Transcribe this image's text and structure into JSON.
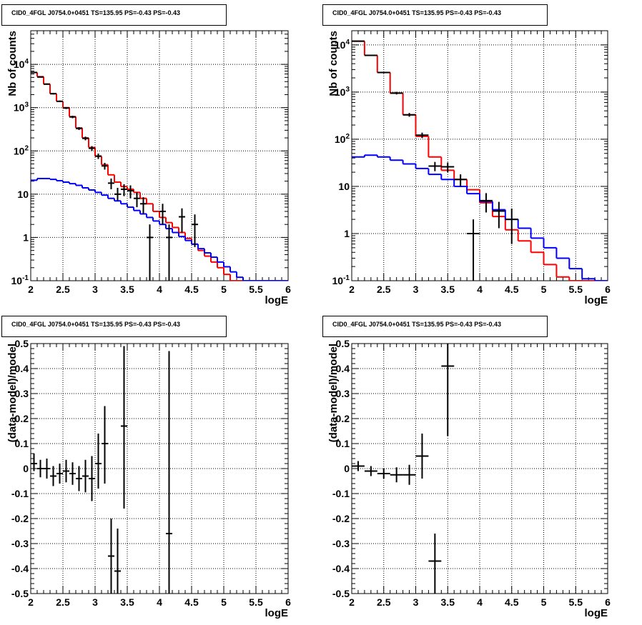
{
  "chart_data": [
    {
      "type": "line",
      "title": "CID0_4FGL J0754.0+0451 TS=135.95 PS=-0.43 PS=-0.43",
      "xlabel": "logE",
      "ylabel": "Nb of counts",
      "xlim": [
        2,
        6
      ],
      "ylim": [
        0.1,
        60000
      ],
      "yscale": "log",
      "grid": true,
      "x_ticks": [
        "2",
        "2.5",
        "3",
        "3.5",
        "4",
        "4.5",
        "5",
        "5.5",
        "6"
      ],
      "y_ticks": [
        "10^{-1}",
        "1",
        "10",
        "10^{2}",
        "10^{3}",
        "10^{4}"
      ],
      "series": [
        {
          "color": "#ff0000",
          "style": "step",
          "bin_edges": [
            2.0,
            2.1,
            2.2,
            2.3,
            2.4,
            2.5,
            2.6,
            2.7,
            2.8,
            2.9,
            3.0,
            3.1,
            3.2,
            3.3,
            3.4,
            3.5,
            3.6,
            3.7,
            3.8,
            3.9,
            4.0,
            4.1,
            4.2,
            4.3,
            4.4,
            4.5,
            4.6,
            4.7,
            4.8,
            4.9,
            5.0,
            5.1,
            5.2,
            5.3,
            5.4,
            5.5,
            5.6,
            5.7,
            5.8,
            5.9,
            6.0
          ],
          "values": [
            6500,
            5200,
            3500,
            2100,
            1400,
            1000,
            620,
            340,
            200,
            120,
            75,
            48,
            28,
            19,
            15,
            13,
            11,
            8,
            6,
            4,
            2.9,
            2.2,
            1.7,
            1.3,
            0.95,
            0.7,
            0.5,
            0.37,
            0.27,
            0.2,
            0.14,
            0.1,
            0.1,
            0.1,
            0.1,
            0.1,
            0.1,
            0.1,
            0.1,
            0.1
          ]
        },
        {
          "color": "#0000ff",
          "style": "step",
          "bin_edges": [
            2.0,
            2.1,
            2.2,
            2.3,
            2.4,
            2.5,
            2.6,
            2.7,
            2.8,
            2.9,
            3.0,
            3.1,
            3.2,
            3.3,
            3.4,
            3.5,
            3.6,
            3.7,
            3.8,
            3.9,
            4.0,
            4.1,
            4.2,
            4.3,
            4.4,
            4.5,
            4.6,
            4.7,
            4.8,
            4.9,
            5.0,
            5.1,
            5.2,
            5.3,
            5.4,
            5.5,
            5.6,
            5.7,
            5.8,
            5.9,
            6.0
          ],
          "values": [
            21,
            23,
            23,
            22,
            20.5,
            19,
            17.5,
            16,
            14,
            12.5,
            11,
            9.5,
            8,
            7,
            6,
            5,
            4.2,
            3.5,
            2.9,
            2.4,
            2.0,
            1.6,
            1.3,
            1.05,
            0.85,
            0.7,
            0.55,
            0.44,
            0.35,
            0.27,
            0.21,
            0.16,
            0.12,
            0.1,
            0.1,
            0.1,
            0.1,
            0.1,
            0.1,
            0.1
          ]
        },
        {
          "color": "#000000",
          "style": "errorbar",
          "points": [
            {
              "x": 2.05,
              "y": 6500,
              "ylo": 6300,
              "yhi": 6700
            },
            {
              "x": 2.15,
              "y": 5100,
              "ylo": 4950,
              "yhi": 5250
            },
            {
              "x": 2.25,
              "y": 3500,
              "ylo": 3400,
              "yhi": 3600
            },
            {
              "x": 2.35,
              "y": 2100,
              "ylo": 2020,
              "yhi": 2180
            },
            {
              "x": 2.45,
              "y": 1400,
              "ylo": 1340,
              "yhi": 1460
            },
            {
              "x": 2.55,
              "y": 980,
              "ylo": 930,
              "yhi": 1030
            },
            {
              "x": 2.65,
              "y": 610,
              "ylo": 570,
              "yhi": 650
            },
            {
              "x": 2.75,
              "y": 330,
              "ylo": 305,
              "yhi": 355
            },
            {
              "x": 2.85,
              "y": 195,
              "ylo": 176,
              "yhi": 214
            },
            {
              "x": 2.95,
              "y": 115,
              "ylo": 101,
              "yhi": 129
            },
            {
              "x": 3.05,
              "y": 76,
              "ylo": 65,
              "yhi": 87
            },
            {
              "x": 3.15,
              "y": 45,
              "ylo": 37,
              "yhi": 53
            },
            {
              "x": 3.25,
              "y": 18,
              "ylo": 13,
              "yhi": 23
            },
            {
              "x": 3.35,
              "y": 10,
              "ylo": 7,
              "yhi": 14
            },
            {
              "x": 3.45,
              "y": 13,
              "ylo": 9,
              "yhi": 17
            },
            {
              "x": 3.55,
              "y": 12,
              "ylo": 8,
              "yhi": 16
            },
            {
              "x": 3.65,
              "y": 8,
              "ylo": 5,
              "yhi": 11
            },
            {
              "x": 3.75,
              "y": 6,
              "ylo": 3.5,
              "yhi": 8.5
            },
            {
              "x": 3.85,
              "y": 1,
              "ylo": 0.1,
              "yhi": 2
            },
            {
              "x": 4.05,
              "y": 4,
              "ylo": 2,
              "yhi": 6
            },
            {
              "x": 4.15,
              "y": 1,
              "ylo": 0.1,
              "yhi": 2
            },
            {
              "x": 4.35,
              "y": 3,
              "ylo": 1.3,
              "yhi": 4.7
            },
            {
              "x": 4.55,
              "y": 2,
              "ylo": 0.6,
              "yhi": 3.4
            }
          ]
        }
      ]
    },
    {
      "type": "line",
      "title": "CID0_4FGL J0754.0+0451 TS=135.95 PS=-0.43 PS=-0.43",
      "xlabel": "logE",
      "ylabel": "Nb of counts",
      "xlim": [
        2,
        6
      ],
      "ylim": [
        0.1,
        20000
      ],
      "yscale": "log",
      "grid": true,
      "x_ticks": [
        "2",
        "2.5",
        "3",
        "3.5",
        "4",
        "4.5",
        "5",
        "5.5",
        "6"
      ],
      "y_ticks": [
        "10^{-1}",
        "1",
        "10",
        "10^{2}",
        "10^{3}",
        "10^{4}"
      ],
      "series": [
        {
          "color": "#ff0000",
          "style": "step",
          "bin_edges": [
            2.0,
            2.2,
            2.4,
            2.6,
            2.8,
            3.0,
            3.2,
            3.4,
            3.6,
            3.8,
            4.0,
            4.2,
            4.4,
            4.6,
            4.8,
            5.0,
            5.2,
            5.4,
            5.6,
            5.8,
            6.0
          ],
          "values": [
            12000,
            6000,
            2600,
            950,
            330,
            115,
            42,
            22,
            14,
            8.5,
            4.5,
            2.3,
            1.2,
            0.7,
            0.4,
            0.22,
            0.12,
            0.1,
            0.1,
            0.1
          ]
        },
        {
          "color": "#0000ff",
          "style": "step",
          "bin_edges": [
            2.0,
            2.2,
            2.4,
            2.6,
            2.8,
            3.0,
            3.2,
            3.4,
            3.6,
            3.8,
            4.0,
            4.2,
            4.4,
            4.6,
            4.8,
            5.0,
            5.2,
            5.4,
            5.6,
            5.8,
            6.0
          ],
          "values": [
            42,
            46,
            42,
            36,
            30,
            24,
            18,
            14,
            10,
            7,
            4.8,
            3.2,
            2.0,
            1.3,
            0.8,
            0.5,
            0.3,
            0.18,
            0.11,
            0.1
          ]
        },
        {
          "color": "#000000",
          "style": "errorbar",
          "points": [
            {
              "x": 2.1,
              "y": 12000,
              "ylo": 11800,
              "yhi": 12200
            },
            {
              "x": 2.3,
              "y": 6000,
              "ylo": 5850,
              "yhi": 6150
            },
            {
              "x": 2.5,
              "y": 2600,
              "ylo": 2500,
              "yhi": 2700
            },
            {
              "x": 2.7,
              "y": 950,
              "ylo": 890,
              "yhi": 1010
            },
            {
              "x": 2.9,
              "y": 330,
              "ylo": 300,
              "yhi": 360
            },
            {
              "x": 3.1,
              "y": 122,
              "ylo": 106,
              "yhi": 138
            },
            {
              "x": 3.3,
              "y": 27,
              "ylo": 21,
              "yhi": 33
            },
            {
              "x": 3.5,
              "y": 26,
              "ylo": 20,
              "yhi": 32
            },
            {
              "x": 3.7,
              "y": 14,
              "ylo": 10,
              "yhi": 18
            },
            {
              "x": 3.9,
              "y": 1,
              "ylo": 0.1,
              "yhi": 2
            },
            {
              "x": 4.1,
              "y": 5,
              "ylo": 2.8,
              "yhi": 7.2
            },
            {
              "x": 4.3,
              "y": 3,
              "ylo": 1.3,
              "yhi": 4.7
            },
            {
              "x": 4.5,
              "y": 2,
              "ylo": 0.6,
              "yhi": 3.4
            }
          ]
        }
      ]
    },
    {
      "type": "scatter",
      "title": "CID0_4FGL J0754.0+0451 TS=135.95 PS=-0.43 PS=-0.43",
      "xlabel": "logE",
      "ylabel": "(data-model)/model",
      "xlim": [
        2,
        6
      ],
      "ylim": [
        -0.5,
        0.5
      ],
      "grid": true,
      "x_ticks": [
        "2",
        "2.5",
        "3",
        "3.5",
        "4",
        "4.5",
        "5",
        "5.5",
        "6"
      ],
      "y_ticks": [
        "-0.5",
        "-0.4",
        "-0.3",
        "-0.2",
        "-0.1",
        "0",
        "0.1",
        "0.2",
        "0.3",
        "0.4",
        "0.5"
      ],
      "series": [
        {
          "color": "#000000",
          "style": "errorbar",
          "xerr": 0.05,
          "points": [
            {
              "x": 2.05,
              "y": 0.02,
              "ylo": -0.01,
              "yhi": 0.06
            },
            {
              "x": 2.15,
              "y": 0.0,
              "ylo": -0.035,
              "yhi": 0.035
            },
            {
              "x": 2.25,
              "y": 0.0,
              "ylo": -0.04,
              "yhi": 0.04
            },
            {
              "x": 2.35,
              "y": -0.03,
              "ylo": -0.07,
              "yhi": 0.01
            },
            {
              "x": 2.45,
              "y": -0.02,
              "ylo": -0.06,
              "yhi": 0.02
            },
            {
              "x": 2.55,
              "y": -0.01,
              "ylo": -0.055,
              "yhi": 0.035
            },
            {
              "x": 2.65,
              "y": -0.02,
              "ylo": -0.065,
              "yhi": 0.025
            },
            {
              "x": 2.75,
              "y": -0.04,
              "ylo": -0.09,
              "yhi": 0.01
            },
            {
              "x": 2.85,
              "y": -0.03,
              "ylo": -0.095,
              "yhi": 0.035
            },
            {
              "x": 2.95,
              "y": -0.04,
              "ylo": -0.13,
              "yhi": 0.05
            },
            {
              "x": 3.05,
              "y": 0.02,
              "ylo": -0.08,
              "yhi": 0.14
            },
            {
              "x": 3.15,
              "y": 0.1,
              "ylo": -0.06,
              "yhi": 0.25
            },
            {
              "x": 3.25,
              "y": -0.35,
              "ylo": -0.5,
              "yhi": -0.2
            },
            {
              "x": 3.35,
              "y": -0.41,
              "ylo": -0.5,
              "yhi": -0.24
            },
            {
              "x": 3.45,
              "y": 0.17,
              "ylo": -0.16,
              "yhi": 0.49
            },
            {
              "x": 4.15,
              "y": -0.26,
              "ylo": -0.5,
              "yhi": 0.47
            }
          ]
        }
      ]
    },
    {
      "type": "scatter",
      "title": "CID0_4FGL J0754.0+0451 TS=135.95 PS=-0.43 PS=-0.43",
      "xlabel": "logE",
      "ylabel": "(data-model)/model",
      "xlim": [
        2,
        6
      ],
      "ylim": [
        -0.5,
        0.5
      ],
      "grid": true,
      "x_ticks": [
        "2",
        "2.5",
        "3",
        "3.5",
        "4",
        "4.5",
        "5",
        "5.5",
        "6"
      ],
      "y_ticks": [
        "-0.5",
        "-0.4",
        "-0.3",
        "-0.2",
        "-0.1",
        "0",
        "0.1",
        "0.2",
        "0.3",
        "0.4",
        "0.5"
      ],
      "series": [
        {
          "color": "#000000",
          "style": "errorbar",
          "xerr": 0.1,
          "points": [
            {
              "x": 2.1,
              "y": 0.01,
              "ylo": -0.01,
              "yhi": 0.03
            },
            {
              "x": 2.3,
              "y": -0.01,
              "ylo": -0.03,
              "yhi": 0.01
            },
            {
              "x": 2.5,
              "y": -0.02,
              "ylo": -0.04,
              "yhi": 0.0
            },
            {
              "x": 2.7,
              "y": -0.025,
              "ylo": -0.055,
              "yhi": 0.005
            },
            {
              "x": 2.9,
              "y": -0.025,
              "ylo": -0.065,
              "yhi": 0.015
            },
            {
              "x": 3.1,
              "y": 0.05,
              "ylo": -0.04,
              "yhi": 0.14
            },
            {
              "x": 3.3,
              "y": -0.37,
              "ylo": -0.5,
              "yhi": -0.26
            },
            {
              "x": 3.5,
              "y": 0.41,
              "ylo": 0.13,
              "yhi": 0.5
            }
          ]
        }
      ]
    }
  ]
}
